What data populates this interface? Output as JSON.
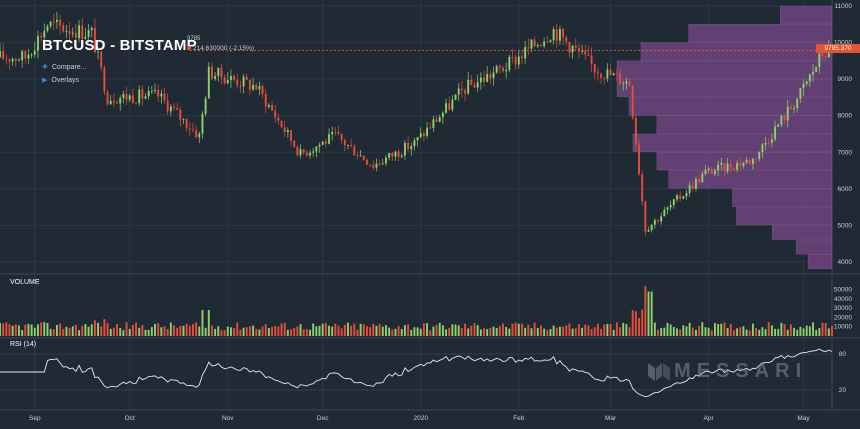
{
  "header": {
    "title": "BTCUSD - BITSTAMP",
    "last_price": "9785",
    "change": "214.630000 (-2.15%)",
    "menu": [
      {
        "label": "Compare...",
        "icon": "plus-icon"
      },
      {
        "label": "Overlays",
        "icon": "triangle-right-icon"
      }
    ]
  },
  "price_tag": "9785.370",
  "panels": {
    "volume_label": "VOLUME",
    "rsi_label": "RSI (14)"
  },
  "watermark": "MESSARI",
  "colors": {
    "background": "#1f2a35",
    "up": "#8fd16a",
    "down": "#e84c3d",
    "volume_profile": "#7d4a8c",
    "current_price": "#e05532",
    "rsi_line": "#e6e9ec"
  },
  "chart_data": {
    "type": "candlestick",
    "y_axis_price": [
      4000,
      5000,
      6000,
      7000,
      8000,
      9000,
      10000,
      11000
    ],
    "y_axis_volume": [
      10000,
      20000,
      30000,
      40000,
      50000
    ],
    "y_axis_rsi": [
      20,
      80
    ],
    "x_axis": [
      "Sep",
      "Oct",
      "Nov",
      "Dec",
      "2020",
      "Feb",
      "Mar",
      "Apr",
      "May"
    ],
    "last_price": 9785.37,
    "daily_close_path": [
      {
        "date": "2019-08-29",
        "close": 9600
      },
      {
        "date": "2019-09-05",
        "close": 10500
      },
      {
        "date": "2019-09-19",
        "close": 10250
      },
      {
        "date": "2019-09-24",
        "close": 8500
      },
      {
        "date": "2019-10-10",
        "close": 8550
      },
      {
        "date": "2019-10-23",
        "close": 7450
      },
      {
        "date": "2019-10-26",
        "close": 9200
      },
      {
        "date": "2019-11-10",
        "close": 8800
      },
      {
        "date": "2019-11-24",
        "close": 6950
      },
      {
        "date": "2019-12-05",
        "close": 7450
      },
      {
        "date": "2019-12-17",
        "close": 6650
      },
      {
        "date": "2019-12-30",
        "close": 7250
      },
      {
        "date": "2020-01-15",
        "close": 8750
      },
      {
        "date": "2020-01-28",
        "close": 9350
      },
      {
        "date": "2020-02-12",
        "close": 10350
      },
      {
        "date": "2020-02-25",
        "close": 9300
      },
      {
        "date": "2020-03-07",
        "close": 8900
      },
      {
        "date": "2020-03-12",
        "close": 4900
      },
      {
        "date": "2020-03-16",
        "close": 5200
      },
      {
        "date": "2020-03-31",
        "close": 6450
      },
      {
        "date": "2020-04-15",
        "close": 6800
      },
      {
        "date": "2020-04-30",
        "close": 8600
      },
      {
        "date": "2020-05-07",
        "close": 9700
      },
      {
        "date": "2020-05-09",
        "close": 9785
      }
    ],
    "volume_profile": [
      {
        "price_from": 3800,
        "price_to": 4200,
        "volume": 6
      },
      {
        "price_from": 4200,
        "price_to": 4600,
        "volume": 9
      },
      {
        "price_from": 4600,
        "price_to": 5000,
        "volume": 15
      },
      {
        "price_from": 5000,
        "price_to": 5500,
        "volume": 24
      },
      {
        "price_from": 5500,
        "price_to": 6000,
        "volume": 25
      },
      {
        "price_from": 6000,
        "price_to": 6500,
        "volume": 41
      },
      {
        "price_from": 6500,
        "price_to": 7000,
        "volume": 44
      },
      {
        "price_from": 7000,
        "price_to": 7500,
        "volume": 50
      },
      {
        "price_from": 7500,
        "price_to": 8000,
        "volume": 44
      },
      {
        "price_from": 8000,
        "price_to": 8500,
        "volume": 51
      },
      {
        "price_from": 8500,
        "price_to": 9000,
        "volume": 54
      },
      {
        "price_from": 9000,
        "price_to": 9500,
        "volume": 54
      },
      {
        "price_from": 9500,
        "price_to": 10000,
        "volume": 48
      },
      {
        "price_from": 10000,
        "price_to": 10500,
        "volume": 36
      },
      {
        "price_from": 10500,
        "price_to": 11000,
        "volume": 13
      }
    ],
    "grid": true
  }
}
